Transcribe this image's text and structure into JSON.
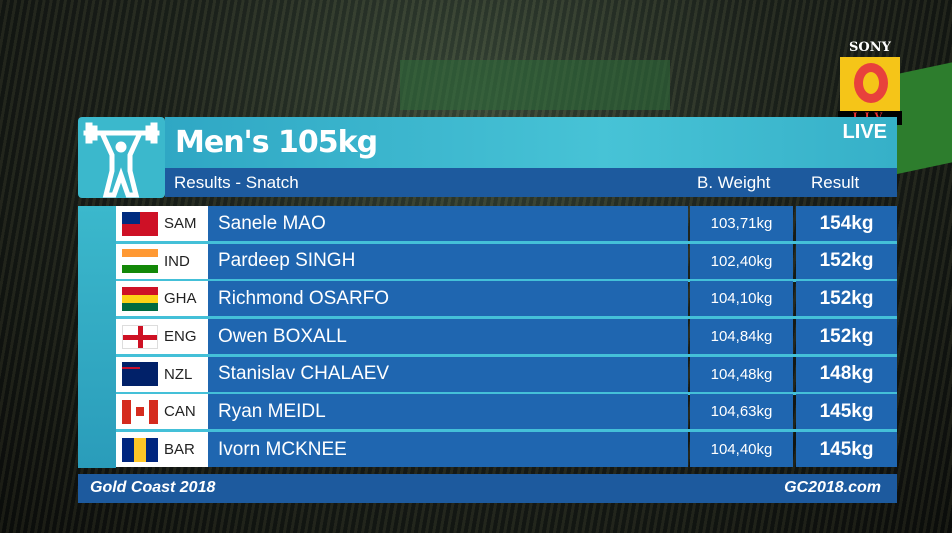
{
  "broadcaster": {
    "logo_text": "SONY",
    "sub_text": "LIV",
    "live_badge": "LIVE"
  },
  "header": {
    "title": "Men's 105kg",
    "subtitle": "Results - Snatch",
    "col_weight": "B. Weight",
    "col_result": "Result"
  },
  "athletes": [
    {
      "code": "SAM",
      "name": "Sanele MAO",
      "weight": "103,71kg",
      "result": "154kg"
    },
    {
      "code": "IND",
      "name": "Pardeep SINGH",
      "weight": "102,40kg",
      "result": "152kg"
    },
    {
      "code": "GHA",
      "name": "Richmond OSARFO",
      "weight": "104,10kg",
      "result": "152kg"
    },
    {
      "code": "ENG",
      "name": "Owen BOXALL",
      "weight": "104,84kg",
      "result": "152kg"
    },
    {
      "code": "NZL",
      "name": "Stanislav CHALAEV",
      "weight": "104,48kg",
      "result": "148kg"
    },
    {
      "code": "CAN",
      "name": "Ryan MEIDL",
      "weight": "104,63kg",
      "result": "145kg"
    },
    {
      "code": "BAR",
      "name": "Ivorn MCKNEE",
      "weight": "104,40kg",
      "result": "145kg"
    }
  ],
  "footer": {
    "left": "Gold Coast 2018",
    "right": "GC2018.com"
  },
  "colors": {
    "header_cyan": "#3bb8cc",
    "dark_blue": "#1d5a9e",
    "row_blue": "#1f66b0"
  }
}
